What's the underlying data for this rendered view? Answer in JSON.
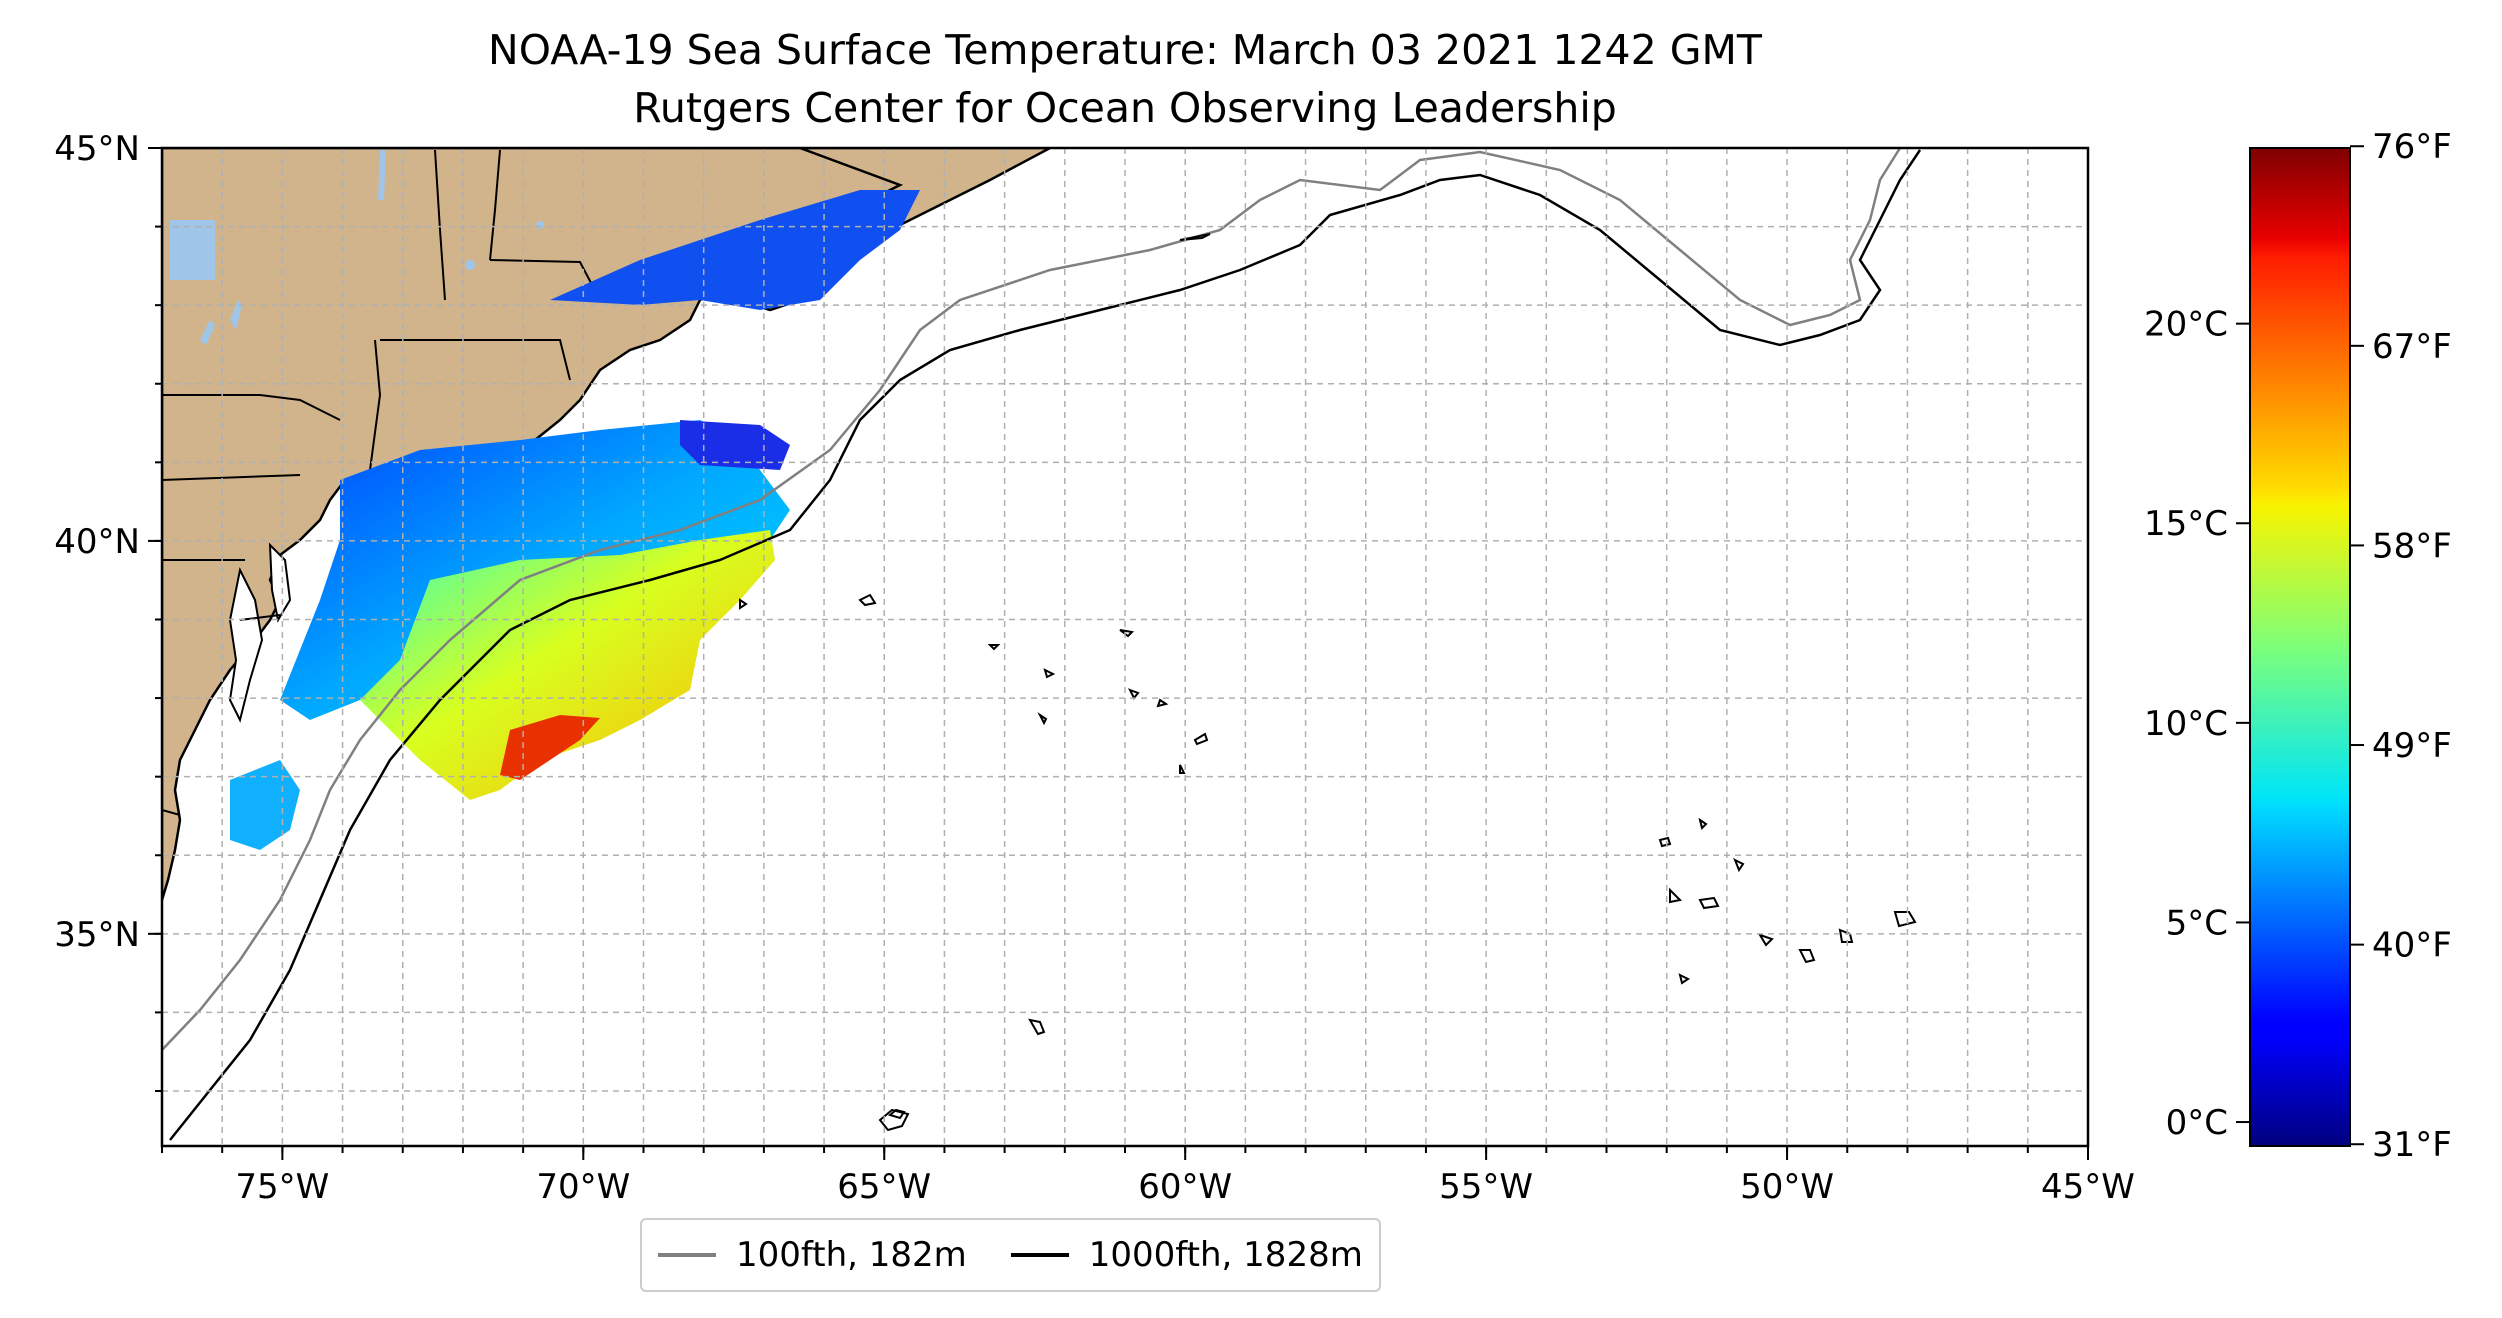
{
  "title": "NOAA-19 Sea Surface Temperature: March 03 2021 1242 GMT",
  "subtitle": "Rutgers Center for Ocean Observing Leadership",
  "map": {
    "extent": {
      "lon": [
        -77,
        -45
      ],
      "lat": [
        32.3,
        45
      ]
    },
    "lon_ticks": [
      {
        "value": -75,
        "label": "75°W"
      },
      {
        "value": -70,
        "label": "70°W"
      },
      {
        "value": -65,
        "label": "65°W"
      },
      {
        "value": -60,
        "label": "60°W"
      },
      {
        "value": -55,
        "label": "55°W"
      },
      {
        "value": -50,
        "label": "50°W"
      },
      {
        "value": -45,
        "label": "45°W"
      }
    ],
    "lat_ticks": [
      {
        "value": 35,
        "label": "35°N"
      },
      {
        "value": 40,
        "label": "40°N"
      },
      {
        "value": 45,
        "label": "45°N"
      }
    ],
    "grid": true,
    "land_color": "#d2b48c",
    "lake_color": "#9fc5e8",
    "ocean_color": "#ffffff"
  },
  "legend": {
    "placement": "bottom-center",
    "items": [
      {
        "label": "100fth, 182m",
        "color": "#808080"
      },
      {
        "label": "1000fth, 1828m",
        "color": "#000000"
      }
    ]
  },
  "colorbar": {
    "colormap": "jet",
    "range_c": [
      -0.6,
      24.4
    ],
    "celsius_ticks": [
      {
        "value": 0,
        "label": "0°C"
      },
      {
        "value": 5,
        "label": "5°C"
      },
      {
        "value": 10,
        "label": "10°C"
      },
      {
        "value": 15,
        "label": "15°C"
      },
      {
        "value": 20,
        "label": "20°C"
      }
    ],
    "fahrenheit_ticks": [
      {
        "value": 31,
        "label": "31°F"
      },
      {
        "value": 40,
        "label": "40°F"
      },
      {
        "value": 49,
        "label": "49°F"
      },
      {
        "value": 58,
        "label": "58°F"
      },
      {
        "value": 67,
        "label": "67°F"
      },
      {
        "value": 76,
        "label": "76°F"
      }
    ]
  }
}
